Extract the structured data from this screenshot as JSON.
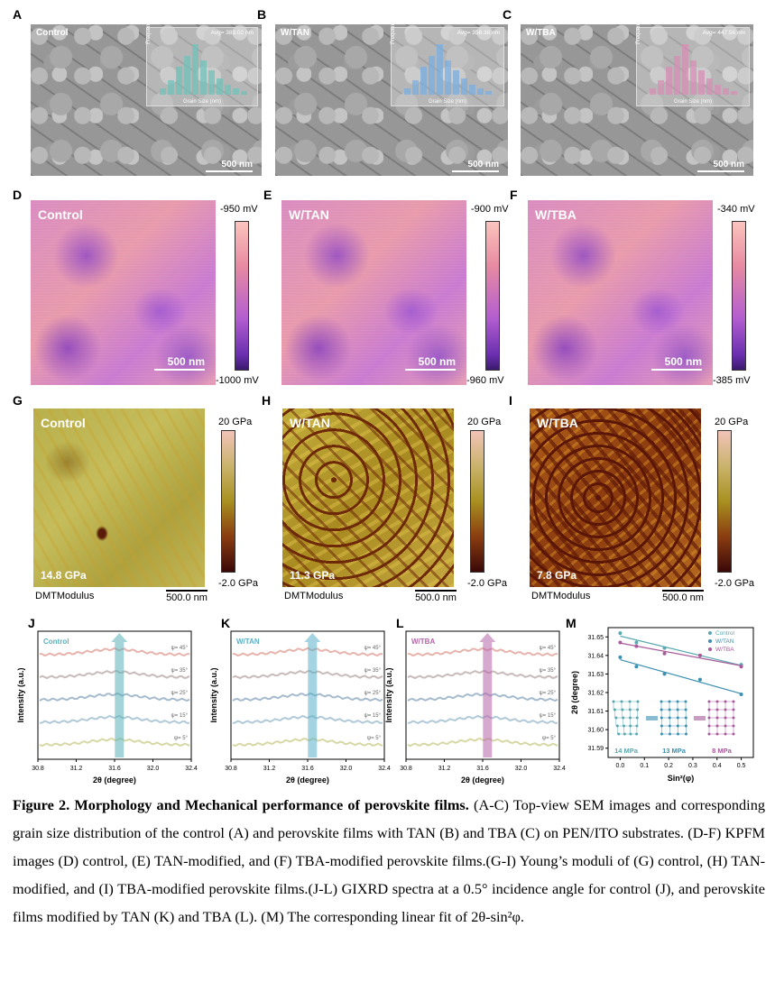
{
  "panels_sem": [
    {
      "letter": "A",
      "label": "Control",
      "avg": "Avg= 383.02 nm",
      "scale": "500 nm",
      "color": "#6fc2b8"
    },
    {
      "letter": "B",
      "label": "W/TAN",
      "avg": "Avg= 358.38 nm",
      "scale": "500 nm",
      "color": "#79aee0"
    },
    {
      "letter": "C",
      "label": "W/TBA",
      "avg": "Avg= 447.56 nm",
      "scale": "500 nm",
      "color": "#d78fb5"
    }
  ],
  "sem_inset": {
    "xlabel": "Grain Size (nm)",
    "ylabel": "Frequency (%)"
  },
  "panels_kpfm": [
    {
      "letter": "D",
      "label": "Control",
      "top": "-950 mV",
      "bottom": "-1000 mV",
      "scale": "500 nm"
    },
    {
      "letter": "E",
      "label": "W/TAN",
      "top": "-900 mV",
      "bottom": "-960 mV",
      "scale": "500 nm"
    },
    {
      "letter": "F",
      "label": "W/TBA",
      "top": "-340 mV",
      "bottom": "-385 mV",
      "scale": "500 nm"
    }
  ],
  "panels_dmt": [
    {
      "letter": "G",
      "label": "Control",
      "value": "14.8 GPa",
      "top": "20 GPa",
      "bottom": "-2.0 GPa",
      "sub": "DMTModulus",
      "scale": "500.0 nm"
    },
    {
      "letter": "H",
      "label": "W/TAN",
      "value": "11.3 GPa",
      "top": "20 GPa",
      "bottom": "-2.0 GPa",
      "sub": "DMTModulus",
      "scale": "500.0 nm"
    },
    {
      "letter": "I",
      "label": "W/TBA",
      "value": "7.8 GPa",
      "top": "20 GPa",
      "bottom": "-2.0 GPa",
      "sub": "DMTModulus",
      "scale": "500.0 nm"
    }
  ],
  "chart_data": [
    {
      "type": "line",
      "panel": "J",
      "title": "Control",
      "xlabel": "2θ (degree)",
      "ylabel": "Intensity (a.u.)",
      "xlim": [
        30.8,
        32.4
      ],
      "xticks": [
        "30.8",
        "31.2",
        "31.6",
        "32.0",
        "32.4"
      ],
      "series": [
        {
          "name": "ψ= 5°"
        },
        {
          "name": "ψ= 15°"
        },
        {
          "name": "ψ= 25°"
        },
        {
          "name": "ψ= 35°"
        },
        {
          "name": "ψ= 45°"
        }
      ],
      "accent": "#5ab0b8"
    },
    {
      "type": "line",
      "panel": "K",
      "title": "W/TAN",
      "xlabel": "2θ (degree)",
      "ylabel": "Intensity (a.u.)",
      "xlim": [
        30.8,
        32.4
      ],
      "xticks": [
        "30.8",
        "31.2",
        "31.6",
        "32.0",
        "32.4"
      ],
      "series": [
        {
          "name": "ψ= 5°"
        },
        {
          "name": "ψ= 15°"
        },
        {
          "name": "ψ= 25°"
        },
        {
          "name": "ψ= 35°"
        },
        {
          "name": "ψ= 45°"
        }
      ],
      "accent": "#5ab0c8"
    },
    {
      "type": "line",
      "panel": "L",
      "title": "W/TBA",
      "xlabel": "2θ (degree)",
      "ylabel": "Intensity (a.u.)",
      "xlim": [
        30.8,
        32.4
      ],
      "xticks": [
        "30.8",
        "31.2",
        "31.6",
        "32.0",
        "32.4"
      ],
      "series": [
        {
          "name": "ψ= 5°"
        },
        {
          "name": "ψ= 15°"
        },
        {
          "name": "ψ= 25°"
        },
        {
          "name": "ψ= 35°"
        },
        {
          "name": "ψ= 45°"
        }
      ],
      "accent": "#b565a8"
    },
    {
      "type": "scatter",
      "panel": "M",
      "xlabel": "Sin²(φ)",
      "ylabel": "2θ (degree)",
      "xlim": [
        -0.05,
        0.55
      ],
      "ylim": [
        31.585,
        31.655
      ],
      "xticks": [
        "0.0",
        "0.1",
        "0.2",
        "0.3",
        "0.4",
        "0.5"
      ],
      "yticks": [
        "31.59",
        "31.60",
        "31.61",
        "31.62",
        "31.63",
        "31.64",
        "31.65"
      ],
      "series": [
        {
          "name": "Control",
          "color": "#5aa8b0",
          "x": [
            0,
            0.067,
            0.183,
            0.33,
            0.5
          ],
          "y": [
            31.652,
            31.647,
            31.644,
            31.64,
            31.635
          ]
        },
        {
          "name": "W/TAN",
          "color": "#3b8fb0",
          "x": [
            0,
            0.067,
            0.183,
            0.33,
            0.5
          ],
          "y": [
            31.639,
            31.634,
            31.63,
            31.627,
            31.619
          ]
        },
        {
          "name": "W/TBA",
          "color": "#a85a9a",
          "x": [
            0,
            0.067,
            0.183,
            0.33,
            0.5
          ],
          "y": [
            31.647,
            31.645,
            31.641,
            31.64,
            31.634
          ]
        }
      ],
      "annotations": [
        "14 MPa",
        "13 MPa",
        "8 MPa"
      ]
    }
  ],
  "caption": {
    "bold": "Figure 2. Morphology and Mechanical performance of perovskite films.",
    "text": " (A-C) Top-view SEM images and corresponding grain size distribution of the control (A) and perovskite films with TAN (B) and TBA (C) on PEN/ITO substrates. (D-F) KPFM images (D) control, (E) TAN-modified, and (F) TBA-modified perovskite films.(G-I) Young’s moduli of (G) control, (H) TAN-modified, and (I) TBA-modified perovskite films.(J-L) GIXRD spectra at a 0.5° incidence angle for control (J), and perovskite films modified by TAN (K) and TBA (L). (M) The corresponding linear fit of 2θ-sin²φ."
  }
}
